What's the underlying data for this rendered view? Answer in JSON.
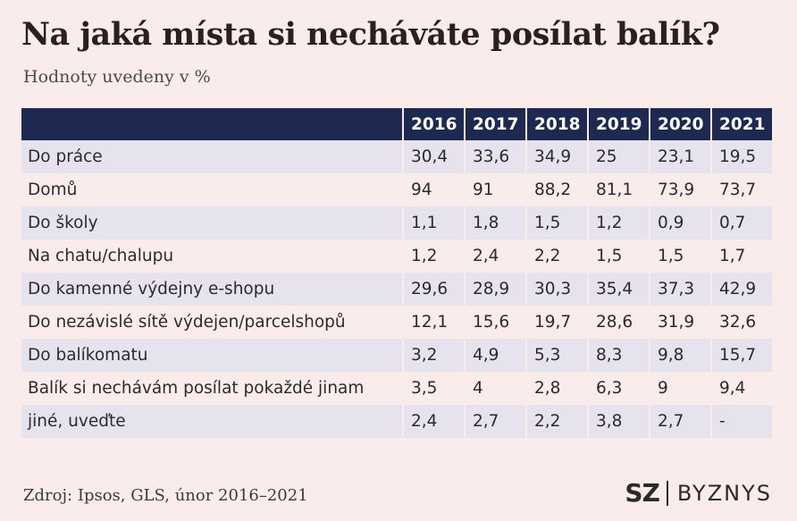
{
  "title": "Na jaká místa si necháváte posílat balík?",
  "subtitle": "Hodnoty uvedeny v %",
  "source": "Zdroj:  Ipsos, GLS, únor 2016–2021",
  "logo": {
    "primary": "SZ",
    "secondary": "BYZNYS"
  },
  "colors": {
    "header_bg": "#1e2952",
    "background": "#fbecec",
    "row_shade": "#e6e3ee"
  },
  "chart_data": {
    "type": "table",
    "columns": [
      "2016",
      "2017",
      "2018",
      "2019",
      "2020",
      "2021"
    ],
    "rows": [
      {
        "label": "Do práce",
        "values": [
          "30,4",
          "33,6",
          "34,9",
          "25",
          "23,1",
          "19,5"
        ]
      },
      {
        "label": "Domů",
        "values": [
          "94",
          "91",
          "88,2",
          "81,1",
          "73,9",
          "73,7"
        ]
      },
      {
        "label": "Do školy",
        "values": [
          "1,1",
          "1,8",
          "1,5",
          "1,2",
          "0,9",
          "0,7"
        ]
      },
      {
        "label": "Na chatu/chalupu",
        "values": [
          "1,2",
          "2,4",
          "2,2",
          "1,5",
          "1,5",
          "1,7"
        ]
      },
      {
        "label": "Do kamenné výdejny e-shopu",
        "values": [
          "29,6",
          "28,9",
          "30,3",
          "35,4",
          "37,3",
          "42,9"
        ]
      },
      {
        "label": "Do nezávislé sítě výdejen/parcelshopů",
        "values": [
          "12,1",
          "15,6",
          "19,7",
          "28,6",
          "31,9",
          "32,6"
        ]
      },
      {
        "label": "Do balíkomatu",
        "values": [
          "3,2",
          "4,9",
          "5,3",
          "8,3",
          "9,8",
          "15,7"
        ]
      },
      {
        "label": "Balík si nechávám posílat pokaždé jinam",
        "values": [
          "3,5",
          "4",
          "2,8",
          "6,3",
          "9",
          "9,4"
        ]
      },
      {
        "label": "jiné, uveďte",
        "values": [
          "2,4",
          "2,7",
          "2,2",
          "3,8",
          "2,7",
          "-"
        ]
      }
    ]
  }
}
